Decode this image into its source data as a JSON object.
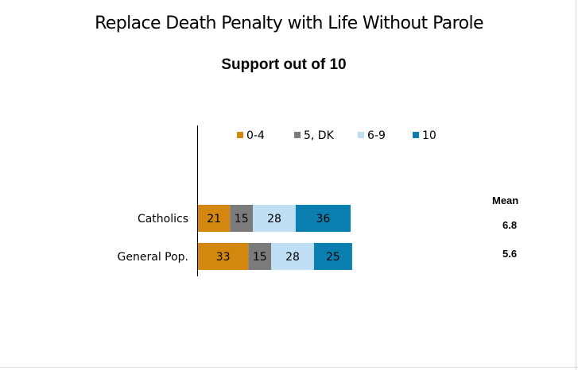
{
  "chart_data": {
    "type": "bar",
    "orientation": "horizontal",
    "stacked": true,
    "title": "Replace Death Penalty with Life Without Parole",
    "subtitle": "Support out of 10",
    "categories": [
      "Catholics",
      "General Pop."
    ],
    "series": [
      {
        "name": "0-4",
        "color": "#d4870f",
        "values": [
          21,
          33
        ]
      },
      {
        "name": "5, DK",
        "color": "#7b7b7b",
        "values": [
          15,
          15
        ]
      },
      {
        "name": "6-9",
        "color": "#bfe0f4",
        "values": [
          28,
          28
        ]
      },
      {
        "name": "10",
        "color": "#0a7fb0",
        "values": [
          36,
          25
        ]
      }
    ],
    "mean": {
      "label": "Mean",
      "values": [
        "6.8",
        "5.6"
      ]
    },
    "legend_position": "top",
    "xlim": [
      0,
      100
    ]
  }
}
